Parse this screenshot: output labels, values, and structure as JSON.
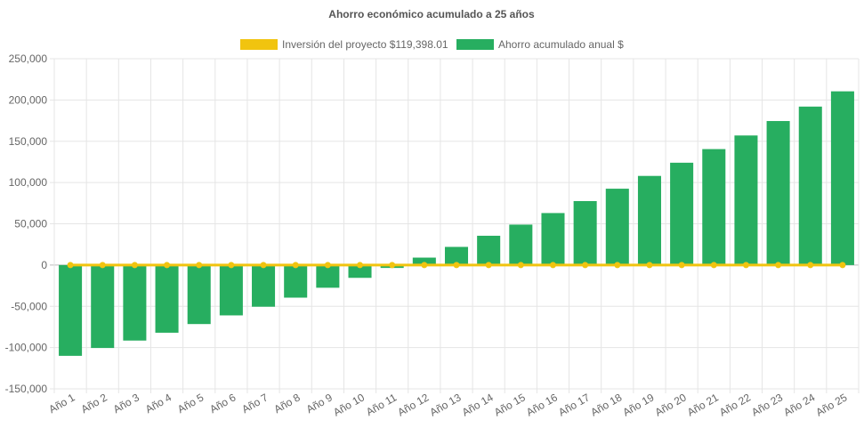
{
  "chart_data": {
    "type": "bar",
    "title": "Ahorro económico acumulado a 25 años",
    "xlabel": "",
    "ylabel": "",
    "ylim": [
      -150000,
      250000
    ],
    "y_ticks": [
      250000,
      200000,
      150000,
      100000,
      50000,
      0,
      -50000,
      -100000,
      -150000
    ],
    "y_tick_labels": [
      "250,000",
      "200,000",
      "150,000",
      "100,000",
      "50,000",
      "0",
      "-50,000",
      "-100,000",
      "-150,000"
    ],
    "grid": true,
    "legend_position": "top",
    "categories": [
      "Año 1",
      "Año 2",
      "Año 3",
      "Año 4",
      "Año 5",
      "Año 6",
      "Año 7",
      "Año 8",
      "Año 9",
      "Año 10",
      "Año 11",
      "Año 12",
      "Año 13",
      "Año 14",
      "Año 15",
      "Año 16",
      "Año 17",
      "Año 18",
      "Año 19",
      "Año 20",
      "Año 21",
      "Año 22",
      "Año 23",
      "Año 24",
      "Año 25"
    ],
    "series": [
      {
        "name": "Inversión del proyecto $119,398.01",
        "type": "line",
        "color": "#F1C40F",
        "values": [
          0,
          0,
          0,
          0,
          0,
          0,
          0,
          0,
          0,
          0,
          0,
          0,
          0,
          0,
          0,
          0,
          0,
          0,
          0,
          0,
          0,
          0,
          0,
          0,
          0
        ]
      },
      {
        "name": "Ahorro acumulado anual $",
        "type": "bar",
        "color": "#27AE60",
        "values": [
          -110000,
          -100500,
          -91500,
          -82000,
          -71500,
          -61000,
          -50500,
          -39500,
          -27500,
          -15500,
          -3500,
          9000,
          22000,
          35500,
          49000,
          63000,
          77500,
          92500,
          108000,
          124000,
          140500,
          157000,
          174500,
          192000,
          210500
        ]
      }
    ]
  }
}
